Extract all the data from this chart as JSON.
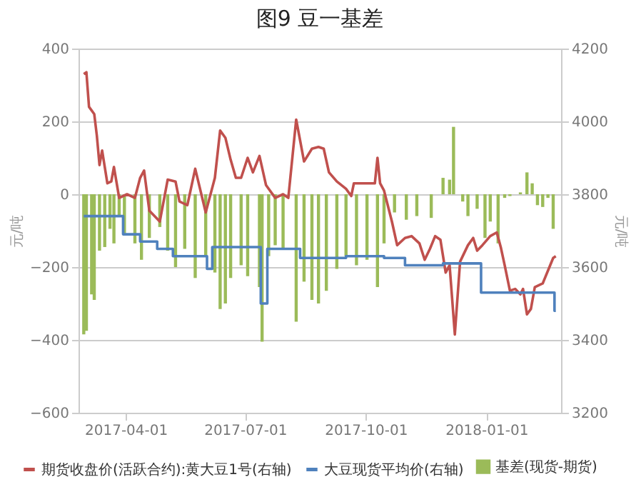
{
  "chart_data": {
    "type": "bar",
    "title": "图9 豆一基差",
    "ylabel": "元/吨",
    "y2label": "元/吨",
    "xlim": [
      "2017-02-24",
      "2018-02-27"
    ],
    "xticks": [
      "2017-04-01",
      "2017-07-01",
      "2017-10-01",
      "2018-01-01"
    ],
    "ylim": [
      -600,
      400
    ],
    "yticks": [
      -600,
      -400,
      -200,
      0,
      200,
      400
    ],
    "y2lim": [
      3200,
      4200
    ],
    "y2ticks": [
      3200,
      3400,
      3600,
      3800,
      4000,
      4200
    ],
    "grid": "y",
    "legend": "bottom",
    "series": [
      {
        "name": "期货收盘价(活跃合约):黄大豆1号(右轴)",
        "type": "line",
        "axis": "y2",
        "color": "#c0504d",
        "x": [
          "2017-02-28",
          "2017-03-02",
          "2017-03-04",
          "2017-03-08",
          "2017-03-10",
          "2017-03-12",
          "2017-03-14",
          "2017-03-18",
          "2017-03-21",
          "2017-03-23",
          "2017-03-27",
          "2017-04-02",
          "2017-04-08",
          "2017-04-12",
          "2017-04-15",
          "2017-04-19",
          "2017-04-27",
          "2017-05-03",
          "2017-05-09",
          "2017-05-12",
          "2017-05-18",
          "2017-05-24",
          "2017-06-01",
          "2017-06-08",
          "2017-06-12",
          "2017-06-16",
          "2017-06-20",
          "2017-06-24",
          "2017-06-28",
          "2017-07-03",
          "2017-07-07",
          "2017-07-12",
          "2017-07-17",
          "2017-07-24",
          "2017-07-30",
          "2017-08-03",
          "2017-08-09",
          "2017-08-15",
          "2017-08-21",
          "2017-08-26",
          "2017-08-30",
          "2017-09-03",
          "2017-09-09",
          "2017-09-16",
          "2017-09-20",
          "2017-09-22",
          "2017-10-02",
          "2017-10-08",
          "2017-10-10",
          "2017-10-12",
          "2017-10-15",
          "2017-10-21",
          "2017-10-25",
          "2017-10-31",
          "2017-11-05",
          "2017-11-11",
          "2017-11-15",
          "2017-11-19",
          "2017-11-23",
          "2017-11-27",
          "2017-12-01",
          "2017-12-04",
          "2017-12-08",
          "2017-12-12",
          "2017-12-18",
          "2017-12-22",
          "2017-12-25",
          "2017-12-29",
          "2018-01-04",
          "2018-01-09",
          "2018-01-12",
          "2018-01-15",
          "2018-01-19",
          "2018-01-23",
          "2018-01-27",
          "2018-01-29",
          "2018-02-01",
          "2018-02-04",
          "2018-02-07",
          "2018-02-13",
          "2018-02-21",
          "2018-02-23"
        ],
        "values": [
          4130,
          4135,
          4040,
          4020,
          3960,
          3880,
          3920,
          3830,
          3835,
          3875,
          3790,
          3800,
          3790,
          3845,
          3865,
          3755,
          3725,
          3840,
          3835,
          3780,
          3770,
          3870,
          3750,
          3845,
          3975,
          3955,
          3895,
          3845,
          3845,
          3900,
          3860,
          3905,
          3825,
          3790,
          3800,
          3790,
          4005,
          3890,
          3925,
          3930,
          3925,
          3860,
          3835,
          3815,
          3795,
          3830,
          3830,
          3830,
          3900,
          3830,
          3810,
          3725,
          3660,
          3680,
          3685,
          3665,
          3620,
          3650,
          3685,
          3675,
          3585,
          3605,
          3415,
          3615,
          3660,
          3680,
          3645,
          3660,
          3685,
          3695,
          3655,
          3605,
          3535,
          3540,
          3525,
          3540,
          3470,
          3485,
          3545,
          3555,
          3625,
          3630
        ]
      },
      {
        "name": "大豆现货平均价(右轴)",
        "type": "step",
        "axis": "y2",
        "color": "#4f81bd",
        "x": [
          "2017-02-28",
          "2017-03-30",
          "2017-04-12",
          "2017-04-25",
          "2017-05-07",
          "2017-06-02",
          "2017-06-06",
          "2017-07-13",
          "2017-07-18",
          "2017-08-12",
          "2017-09-16",
          "2017-10-15",
          "2017-10-31",
          "2017-11-29",
          "2017-12-28",
          "2018-02-22",
          "2018-02-23"
        ],
        "values": [
          3740,
          3690,
          3670,
          3650,
          3630,
          3595,
          3655,
          3500,
          3650,
          3625,
          3630,
          3625,
          3605,
          3610,
          3530,
          3480,
          3480
        ]
      },
      {
        "name": "基差(现货-期货)",
        "type": "bar",
        "color": "#9bbb59",
        "x": [
          "2017-02-28",
          "2017-03-02",
          "2017-03-06",
          "2017-03-08",
          "2017-03-12",
          "2017-03-16",
          "2017-03-20",
          "2017-03-23",
          "2017-03-27",
          "2017-03-31",
          "2017-04-08",
          "2017-04-13",
          "2017-04-19",
          "2017-04-27",
          "2017-05-03",
          "2017-05-09",
          "2017-05-16",
          "2017-05-24",
          "2017-06-01",
          "2017-06-08",
          "2017-06-12",
          "2017-06-16",
          "2017-06-20",
          "2017-06-28",
          "2017-07-03",
          "2017-07-12",
          "2017-07-14",
          "2017-07-19",
          "2017-07-24",
          "2017-07-30",
          "2017-08-09",
          "2017-08-15",
          "2017-08-21",
          "2017-08-26",
          "2017-09-01",
          "2017-09-09",
          "2017-09-16",
          "2017-09-24",
          "2017-10-02",
          "2017-10-10",
          "2017-10-15",
          "2017-10-23",
          "2017-11-01",
          "2017-11-09",
          "2017-11-20",
          "2017-11-29",
          "2017-12-04",
          "2017-12-07",
          "2017-12-14",
          "2017-12-18",
          "2017-12-25",
          "2017-12-31",
          "2018-01-04",
          "2018-01-10",
          "2018-01-15",
          "2018-01-19",
          "2018-01-27",
          "2018-02-01",
          "2018-02-05",
          "2018-02-09",
          "2018-02-13",
          "2018-02-17",
          "2018-02-21"
        ],
        "values": [
          -385,
          -375,
          -275,
          -290,
          -155,
          -145,
          -95,
          -135,
          -60,
          -110,
          -135,
          -180,
          -120,
          -90,
          -155,
          -200,
          -150,
          -230,
          -170,
          -215,
          -315,
          -300,
          -230,
          -195,
          -225,
          -255,
          -405,
          -170,
          -140,
          -150,
          -350,
          -240,
          -290,
          -300,
          -265,
          -205,
          -170,
          -195,
          -180,
          -255,
          -135,
          -50,
          -70,
          -60,
          -65,
          45,
          40,
          185,
          -20,
          -60,
          -40,
          -120,
          -75,
          -135,
          -10,
          -5,
          5,
          60,
          30,
          -30,
          -35,
          -10,
          -95
        ]
      }
    ]
  }
}
